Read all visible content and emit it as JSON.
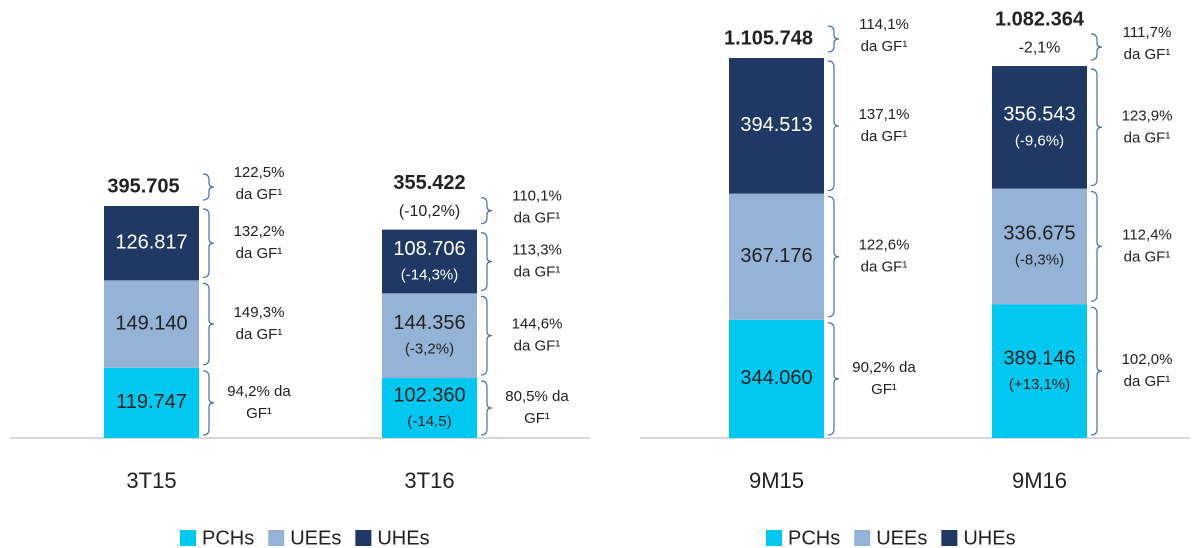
{
  "chart_data": [
    {
      "type": "bar",
      "stacked": true,
      "categories": [
        "3T15",
        "3T16"
      ],
      "series": [
        {
          "name": "PCHs",
          "color": "#00c8f0",
          "values": [
            119747,
            102360
          ],
          "value_labels": [
            "119.747",
            "102.360"
          ],
          "changes": [
            null,
            "(-14,5)"
          ],
          "gf": [
            [
              "94,2% da",
              "GF¹"
            ],
            [
              "80,5% da",
              "GF¹"
            ]
          ]
        },
        {
          "name": "UEEs",
          "color": "#95b3d7",
          "values": [
            149140,
            144356
          ],
          "value_labels": [
            "149.140",
            "144.356"
          ],
          "changes": [
            null,
            "(-3,2%)"
          ],
          "gf": [
            [
              "149,3%",
              "da GF¹"
            ],
            [
              "144,6%",
              "da GF¹"
            ]
          ]
        },
        {
          "name": "UHEs",
          "color": "#1f3864",
          "values": [
            126817,
            108706
          ],
          "value_labels": [
            "126.817",
            "108.706"
          ],
          "changes": [
            null,
            "(-14,3%)"
          ],
          "gf": [
            [
              "132,2%",
              "da GF¹"
            ],
            [
              "113,3%",
              "da GF¹"
            ]
          ]
        }
      ],
      "totals": {
        "values": [
          395705,
          355422
        ],
        "value_labels": [
          "395.705",
          "355.422"
        ],
        "changes": [
          null,
          "(-10,2%)"
        ],
        "gf": [
          [
            "122,5%",
            "da GF¹"
          ],
          [
            "110,1%",
            "da GF¹"
          ]
        ]
      }
    },
    {
      "type": "bar",
      "stacked": true,
      "categories": [
        "9M15",
        "9M16"
      ],
      "series": [
        {
          "name": "PCHs",
          "color": "#00c8f0",
          "values": [
            344060,
            389146
          ],
          "value_labels": [
            "344.060",
            "389.146"
          ],
          "changes": [
            null,
            "(+13,1%)"
          ],
          "gf": [
            [
              "90,2% da",
              "GF¹"
            ],
            [
              "102,0%",
              "da GF¹"
            ]
          ]
        },
        {
          "name": "UEEs",
          "color": "#95b3d7",
          "values": [
            367176,
            336675
          ],
          "value_labels": [
            "367.176",
            "336.675"
          ],
          "changes": [
            null,
            "(-8,3%)"
          ],
          "gf": [
            [
              "122,6%",
              "da GF¹"
            ],
            [
              "112,4%",
              "da GF¹"
            ]
          ]
        },
        {
          "name": "UHEs",
          "color": "#1f3864",
          "values": [
            394513,
            356543
          ],
          "value_labels": [
            "394.513",
            "356.543"
          ],
          "changes": [
            null,
            "(-9,6%)"
          ],
          "gf": [
            [
              "137,1%",
              "da GF¹"
            ],
            [
              "123,9%",
              "da GF¹"
            ]
          ]
        }
      ],
      "totals": {
        "values": [
          1105748,
          1082364
        ],
        "value_labels": [
          "1.105.748",
          "1.082.364"
        ],
        "changes": [
          null,
          "-2,1%"
        ],
        "gf": [
          [
            "114,1%",
            "da GF¹"
          ],
          [
            "111,7%",
            "da GF¹"
          ]
        ]
      }
    }
  ]
}
